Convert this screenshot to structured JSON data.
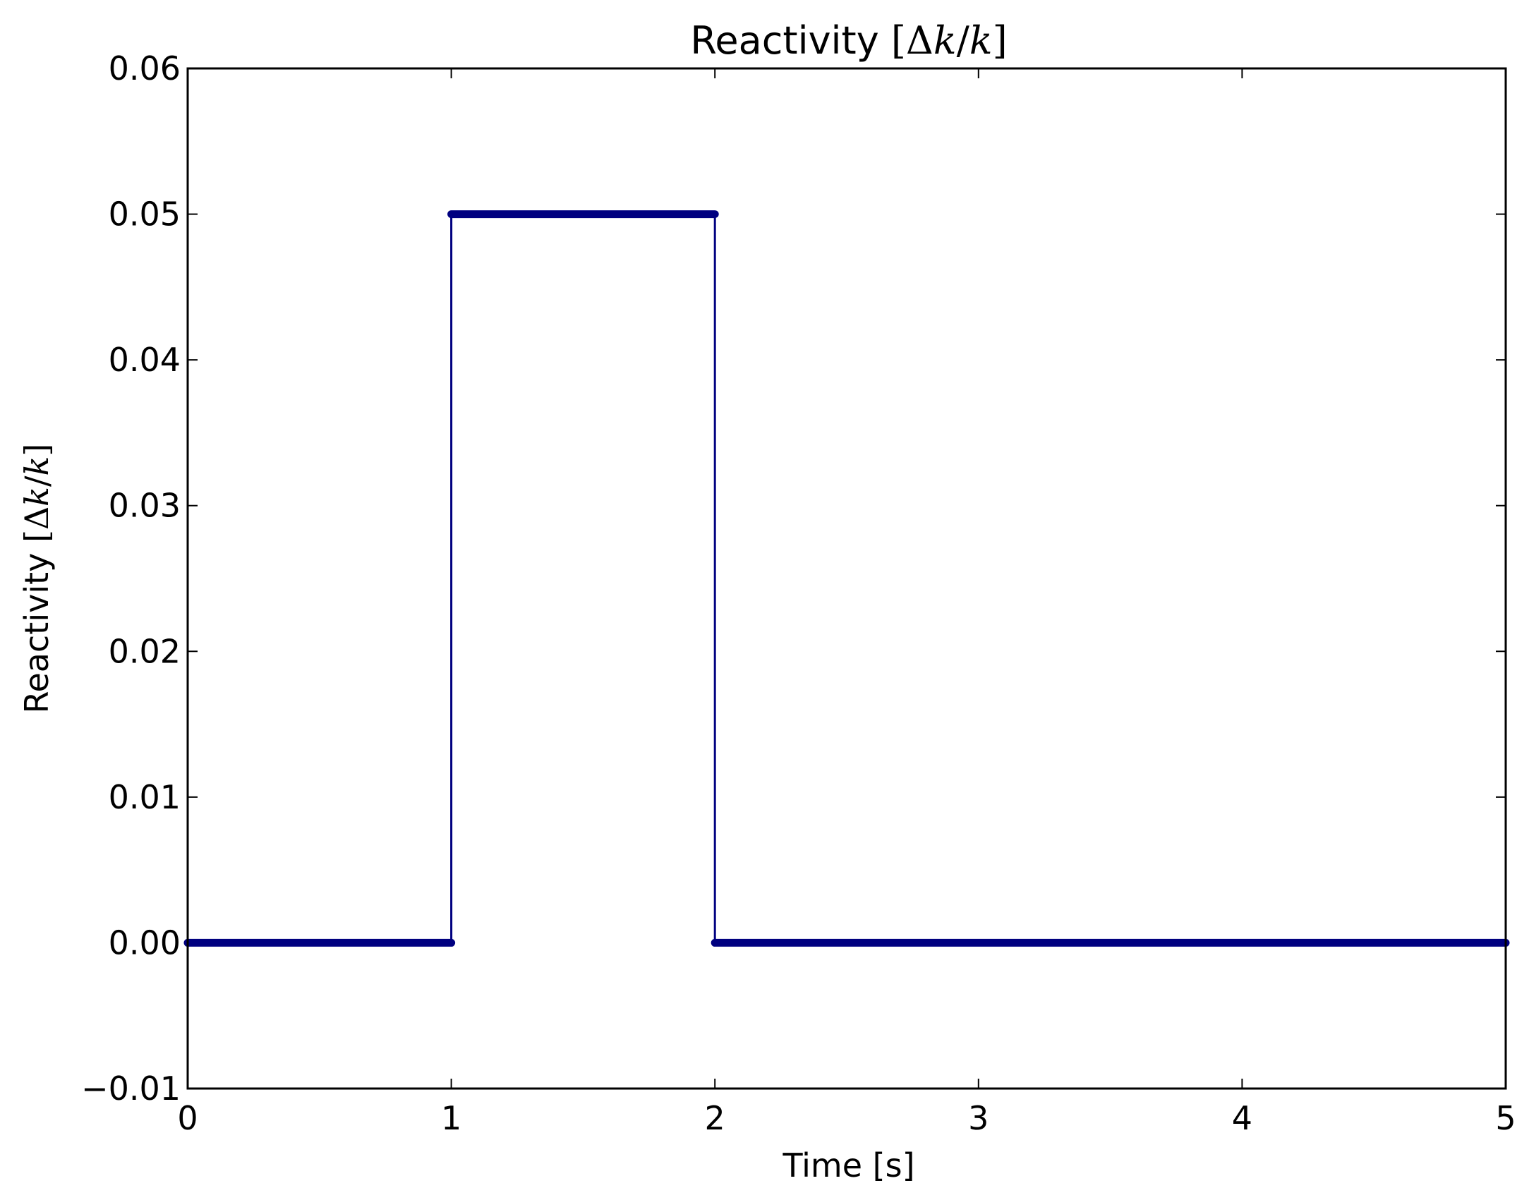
{
  "chart_data": {
    "type": "line",
    "title": {
      "prefix": "Reactivity ",
      "open": "[",
      "delta": "Δ",
      "k1": "k",
      "slash": "/",
      "k2": "k",
      "close": "]"
    },
    "xlabel": "Time [s]",
    "ylabel": {
      "prefix": "Reactivity ",
      "open": "[",
      "delta": "Δ",
      "k1": "k",
      "slash": "/",
      "k2": "k",
      "close": "]"
    },
    "xlim": [
      0,
      5
    ],
    "ylim": [
      -0.01,
      0.06
    ],
    "xticks": [
      0,
      1,
      2,
      3,
      4,
      5
    ],
    "xtick_labels": [
      "0",
      "1",
      "2",
      "3",
      "4",
      "5"
    ],
    "yticks": [
      -0.01,
      0.0,
      0.01,
      0.02,
      0.03,
      0.04,
      0.05,
      0.06
    ],
    "ytick_labels": [
      "−0.01",
      "0.00",
      "0.01",
      "0.02",
      "0.03",
      "0.04",
      "0.05",
      "0.06"
    ],
    "grid": false,
    "legend": "none",
    "series": [
      {
        "color": "#000080",
        "marker": "dot",
        "x": [
          0,
          1,
          1,
          2,
          2,
          5
        ],
        "y": [
          0.0,
          0.0,
          0.05,
          0.05,
          0.0,
          0.0
        ],
        "dense_marker_segments": [
          {
            "x": [
              0,
              1
            ],
            "y": 0.0
          },
          {
            "x": [
              1,
              2
            ],
            "y": 0.05
          },
          {
            "x": [
              2,
              5
            ],
            "y": 0.0
          }
        ]
      }
    ]
  }
}
